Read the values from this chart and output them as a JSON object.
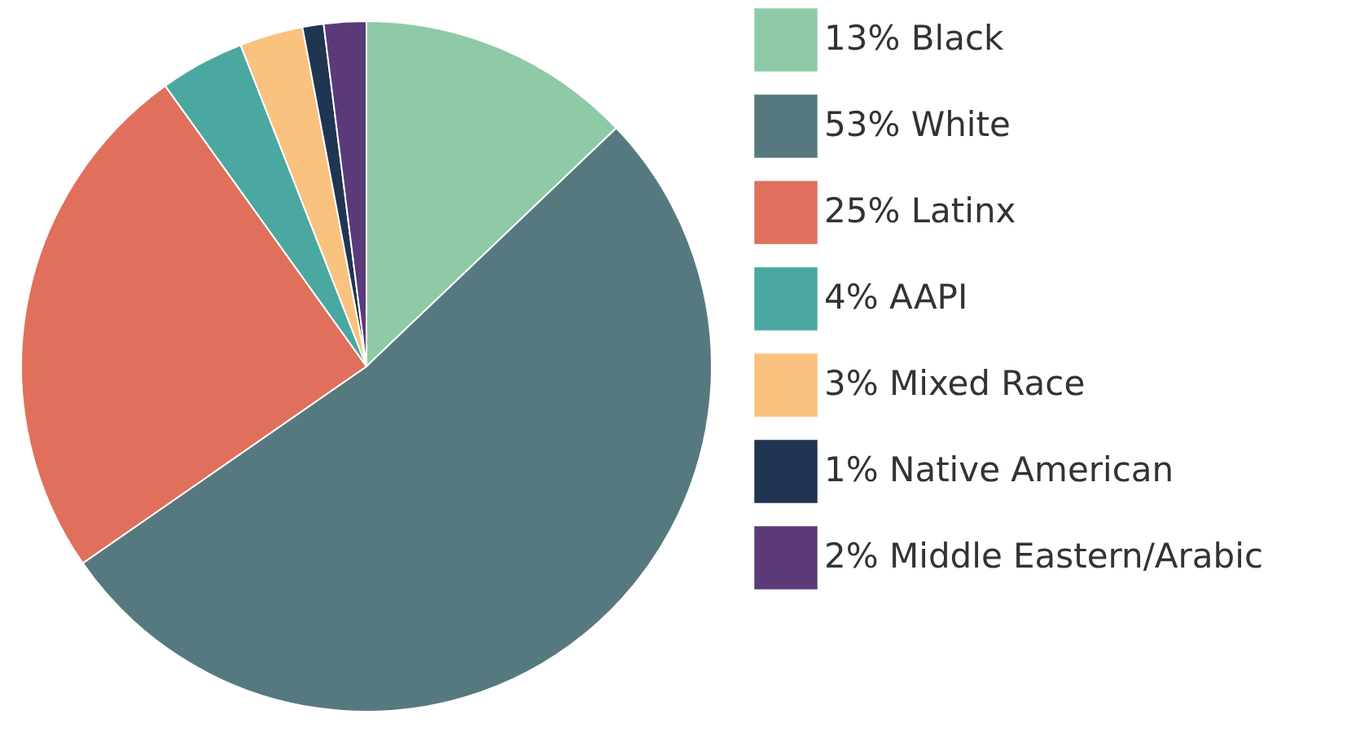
{
  "chart_data": {
    "type": "pie",
    "categories": [
      "13% Black",
      "53% White",
      "25% Latinx",
      "4% AAPI",
      "3% Mixed Race",
      "1% Native American",
      "2% Middle Eastern/Arabic"
    ],
    "values": [
      13,
      53,
      25,
      4,
      3,
      1,
      2
    ],
    "colors": [
      "#8fcaa6",
      "#56797f",
      "#e0705c",
      "#4aa8a0",
      "#f9c27e",
      "#1f3552",
      "#5b3a7a"
    ],
    "legend": "right"
  }
}
